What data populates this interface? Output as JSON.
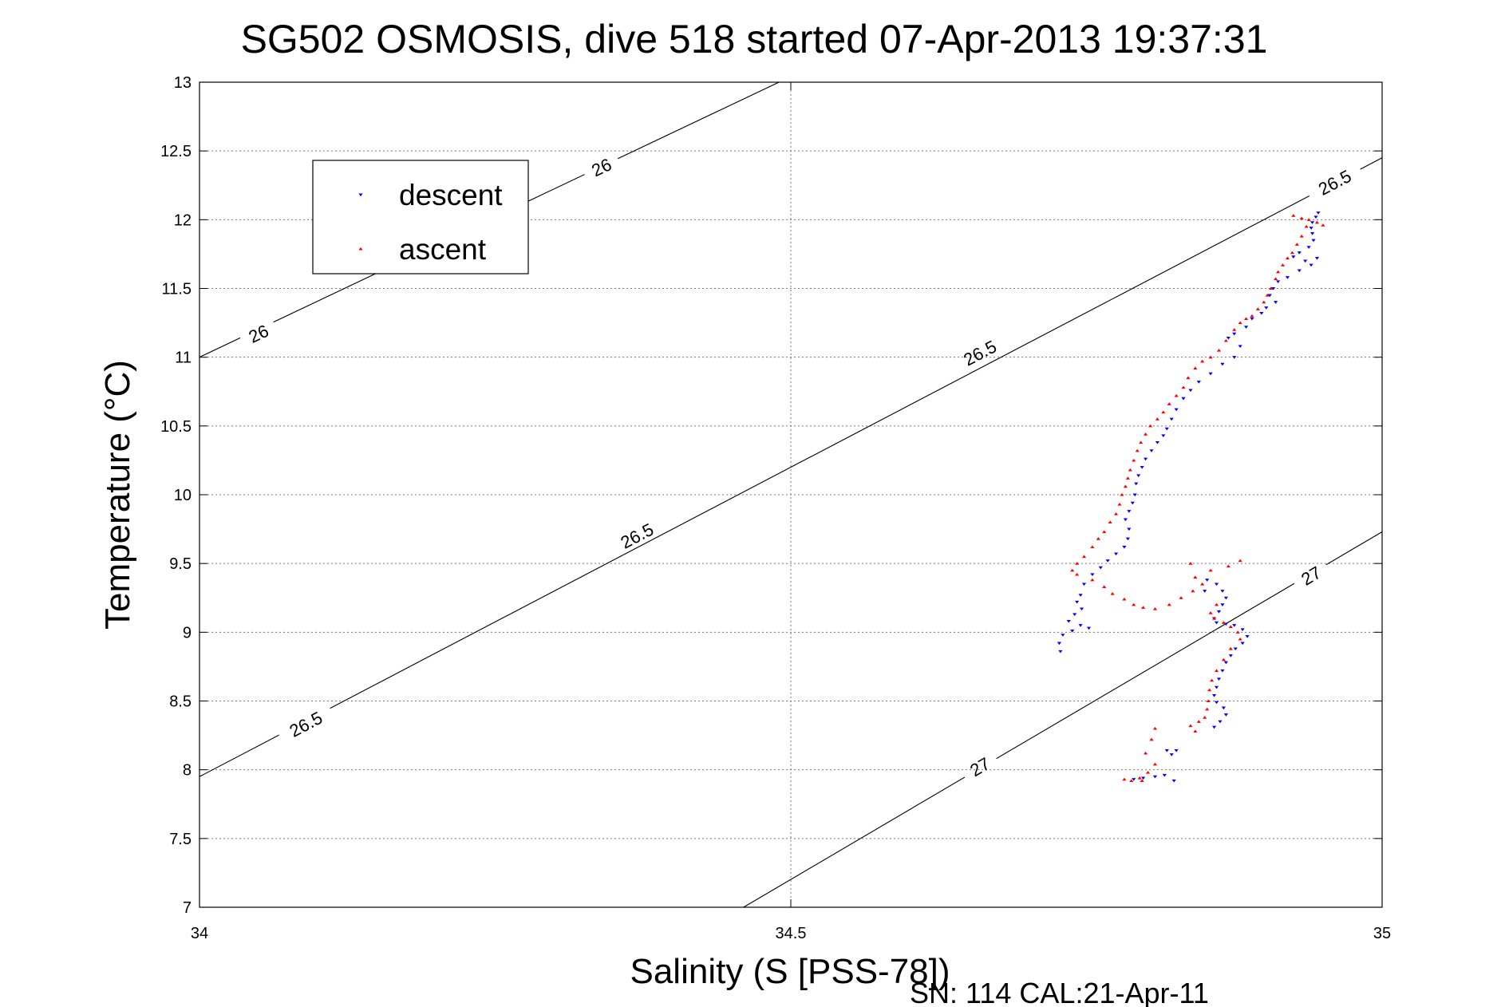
{
  "chart_data": {
    "type": "scatter",
    "title": "SG502 OSMOSIS, dive 518 started 07-Apr-2013 19:37:31",
    "xlabel": "Salinity (S [PSS-78])",
    "ylabel": "Temperature (°C)",
    "footer": "SN: 114  CAL:21-Apr-11",
    "xlim": [
      34,
      35
    ],
    "ylim": [
      7,
      13
    ],
    "xticks": [
      "34",
      "34.5",
      "35"
    ],
    "yticks": [
      "7",
      "7.5",
      "8",
      "8.5",
      "9",
      "9.5",
      "10",
      "10.5",
      "11",
      "11.5",
      "12",
      "12.5",
      "13"
    ],
    "grid": true,
    "legend": {
      "placement": "top-left"
    },
    "series": [
      {
        "name": "descent",
        "color": "#0000ff",
        "marker": "triangle-down",
        "points": [
          [
            34.946,
            12.05
          ],
          [
            34.944,
            12.02
          ],
          [
            34.941,
            11.98
          ],
          [
            34.94,
            11.94
          ],
          [
            34.941,
            11.9
          ],
          [
            34.942,
            11.85
          ],
          [
            34.938,
            11.8
          ],
          [
            34.93,
            11.76
          ],
          [
            34.925,
            11.73
          ],
          [
            34.935,
            11.7
          ],
          [
            34.945,
            11.72
          ],
          [
            34.94,
            11.67
          ],
          [
            34.93,
            11.63
          ],
          [
            34.92,
            11.58
          ],
          [
            34.912,
            11.55
          ],
          [
            34.908,
            11.5
          ],
          [
            34.905,
            11.45
          ],
          [
            34.91,
            11.4
          ],
          [
            34.902,
            11.36
          ],
          [
            34.898,
            11.32
          ],
          [
            34.89,
            11.28
          ],
          [
            34.885,
            11.22
          ],
          [
            34.875,
            11.17
          ],
          [
            34.87,
            11.14
          ],
          [
            34.88,
            11.08
          ],
          [
            34.875,
            11.0
          ],
          [
            34.865,
            10.95
          ],
          [
            34.855,
            10.88
          ],
          [
            34.845,
            10.82
          ],
          [
            34.838,
            10.76
          ],
          [
            34.832,
            10.7
          ],
          [
            34.826,
            10.62
          ],
          [
            34.822,
            10.55
          ],
          [
            34.818,
            10.48
          ],
          [
            34.815,
            10.43
          ],
          [
            34.81,
            10.38
          ],
          [
            34.805,
            10.32
          ],
          [
            34.8,
            10.26
          ],
          [
            34.797,
            10.2
          ],
          [
            34.794,
            10.14
          ],
          [
            34.792,
            10.08
          ],
          [
            34.791,
            10.0
          ],
          [
            34.789,
            9.94
          ],
          [
            34.786,
            9.88
          ],
          [
            34.783,
            9.82
          ],
          [
            34.786,
            9.75
          ],
          [
            34.785,
            9.68
          ],
          [
            34.782,
            9.62
          ],
          [
            34.775,
            9.57
          ],
          [
            34.768,
            9.52
          ],
          [
            34.762,
            9.47
          ],
          [
            34.755,
            9.42
          ],
          [
            34.748,
            9.35
          ],
          [
            34.745,
            9.27
          ],
          [
            34.742,
            9.22
          ],
          [
            34.746,
            9.17
          ],
          [
            34.74,
            9.13
          ],
          [
            34.735,
            9.08
          ],
          [
            34.745,
            9.05
          ],
          [
            34.752,
            9.03
          ],
          [
            34.738,
            9.01
          ],
          [
            34.73,
            8.98
          ],
          [
            34.727,
            8.92
          ],
          [
            34.728,
            8.86
          ],
          [
            34.85,
            9.3
          ],
          [
            34.852,
            9.38
          ],
          [
            34.86,
            9.35
          ],
          [
            34.865,
            9.3
          ],
          [
            34.868,
            9.25
          ],
          [
            34.865,
            9.2
          ],
          [
            34.862,
            9.15
          ],
          [
            34.858,
            9.1
          ],
          [
            34.86,
            9.07
          ],
          [
            34.868,
            9.06
          ],
          [
            34.875,
            9.05
          ],
          [
            34.882,
            9.02
          ],
          [
            34.886,
            8.97
          ],
          [
            34.882,
            8.92
          ],
          [
            34.876,
            8.88
          ],
          [
            34.872,
            8.83
          ],
          [
            34.868,
            8.78
          ],
          [
            34.865,
            8.72
          ],
          [
            34.862,
            8.66
          ],
          [
            34.86,
            8.6
          ],
          [
            34.858,
            8.54
          ],
          [
            34.86,
            8.49
          ],
          [
            34.866,
            8.45
          ],
          [
            34.868,
            8.4
          ],
          [
            34.863,
            8.35
          ],
          [
            34.858,
            8.31
          ],
          [
            34.826,
            8.14
          ],
          [
            34.818,
            8.14
          ],
          [
            34.822,
            8.11
          ],
          [
            34.816,
            7.96
          ],
          [
            34.808,
            7.95
          ],
          [
            34.798,
            7.94
          ],
          [
            34.79,
            7.93
          ],
          [
            34.824,
            7.92
          ]
        ]
      },
      {
        "name": "ascent",
        "color": "#ff0000",
        "marker": "triangle-up",
        "points": [
          [
            34.925,
            12.03
          ],
          [
            34.932,
            12.01
          ],
          [
            34.938,
            12.0
          ],
          [
            34.945,
            11.98
          ],
          [
            34.95,
            11.96
          ],
          [
            34.936,
            11.95
          ],
          [
            34.932,
            11.88
          ],
          [
            34.928,
            11.82
          ],
          [
            34.924,
            11.76
          ],
          [
            34.92,
            11.72
          ],
          [
            34.916,
            11.67
          ],
          [
            34.912,
            11.62
          ],
          [
            34.91,
            11.57
          ],
          [
            34.906,
            11.5
          ],
          [
            34.903,
            11.45
          ],
          [
            34.9,
            11.4
          ],
          [
            34.895,
            11.35
          ],
          [
            34.89,
            11.3
          ],
          [
            34.885,
            11.28
          ],
          [
            34.88,
            11.25
          ],
          [
            34.875,
            11.2
          ],
          [
            34.868,
            11.12
          ],
          [
            34.862,
            11.05
          ],
          [
            34.855,
            11.0
          ],
          [
            34.848,
            10.97
          ],
          [
            34.842,
            10.92
          ],
          [
            34.836,
            10.85
          ],
          [
            34.832,
            10.78
          ],
          [
            34.826,
            10.72
          ],
          [
            34.82,
            10.66
          ],
          [
            34.815,
            10.6
          ],
          [
            34.81,
            10.55
          ],
          [
            34.804,
            10.5
          ],
          [
            34.8,
            10.44
          ],
          [
            34.796,
            10.38
          ],
          [
            34.793,
            10.32
          ],
          [
            34.79,
            10.25
          ],
          [
            34.787,
            10.18
          ],
          [
            34.785,
            10.12
          ],
          [
            34.783,
            10.06
          ],
          [
            34.78,
            10.0
          ],
          [
            34.778,
            9.93
          ],
          [
            34.775,
            9.86
          ],
          [
            34.77,
            9.8
          ],
          [
            34.765,
            9.73
          ],
          [
            34.76,
            9.68
          ],
          [
            34.755,
            9.62
          ],
          [
            34.748,
            9.55
          ],
          [
            34.742,
            9.5
          ],
          [
            34.738,
            9.45
          ],
          [
            34.742,
            9.42
          ],
          [
            34.755,
            9.38
          ],
          [
            34.765,
            9.33
          ],
          [
            34.772,
            9.28
          ],
          [
            34.782,
            9.24
          ],
          [
            34.79,
            9.2
          ],
          [
            34.798,
            9.18
          ],
          [
            34.808,
            9.17
          ],
          [
            34.82,
            9.2
          ],
          [
            34.83,
            9.25
          ],
          [
            34.84,
            9.3
          ],
          [
            34.848,
            9.35
          ],
          [
            34.842,
            9.4
          ],
          [
            34.838,
            9.5
          ],
          [
            34.855,
            9.45
          ],
          [
            34.87,
            9.48
          ],
          [
            34.88,
            9.52
          ],
          [
            34.86,
            9.2
          ],
          [
            34.855,
            9.14
          ],
          [
            34.858,
            9.1
          ],
          [
            34.866,
            9.07
          ],
          [
            34.872,
            9.04
          ],
          [
            34.878,
            9.0
          ],
          [
            34.88,
            8.95
          ],
          [
            34.872,
            8.88
          ],
          [
            34.866,
            8.8
          ],
          [
            34.86,
            8.72
          ],
          [
            34.856,
            8.65
          ],
          [
            34.854,
            8.58
          ],
          [
            34.853,
            8.5
          ],
          [
            34.852,
            8.44
          ],
          [
            34.85,
            8.38
          ],
          [
            34.845,
            8.35
          ],
          [
            34.838,
            8.32
          ],
          [
            34.842,
            8.28
          ],
          [
            34.808,
            8.3
          ],
          [
            34.805,
            8.22
          ],
          [
            34.8,
            8.12
          ],
          [
            34.808,
            8.04
          ],
          [
            34.802,
            7.98
          ],
          [
            34.795,
            7.94
          ],
          [
            34.782,
            7.93
          ],
          [
            34.788,
            7.92
          ],
          [
            34.797,
            7.92
          ]
        ]
      }
    ],
    "contours": [
      {
        "label": "26",
        "points": [
          [
            34.0,
            11.0
          ],
          [
            34.49,
            13.0
          ]
        ],
        "labels_at": [
          [
            34.05,
            11.17
          ],
          [
            34.34,
            12.38
          ]
        ]
      },
      {
        "label": "26.5",
        "points": [
          [
            34.0,
            7.95
          ],
          [
            35.0,
            12.45
          ]
        ],
        "labels_at": [
          [
            34.09,
            8.33
          ],
          [
            34.37,
            9.7
          ],
          [
            34.66,
            11.03
          ],
          [
            34.96,
            12.27
          ]
        ]
      },
      {
        "label": "27",
        "points": [
          [
            34.46,
            7.0
          ],
          [
            35.0,
            9.73
          ]
        ],
        "labels_at": [
          [
            34.66,
            8.02
          ],
          [
            34.94,
            9.41
          ]
        ]
      }
    ]
  }
}
